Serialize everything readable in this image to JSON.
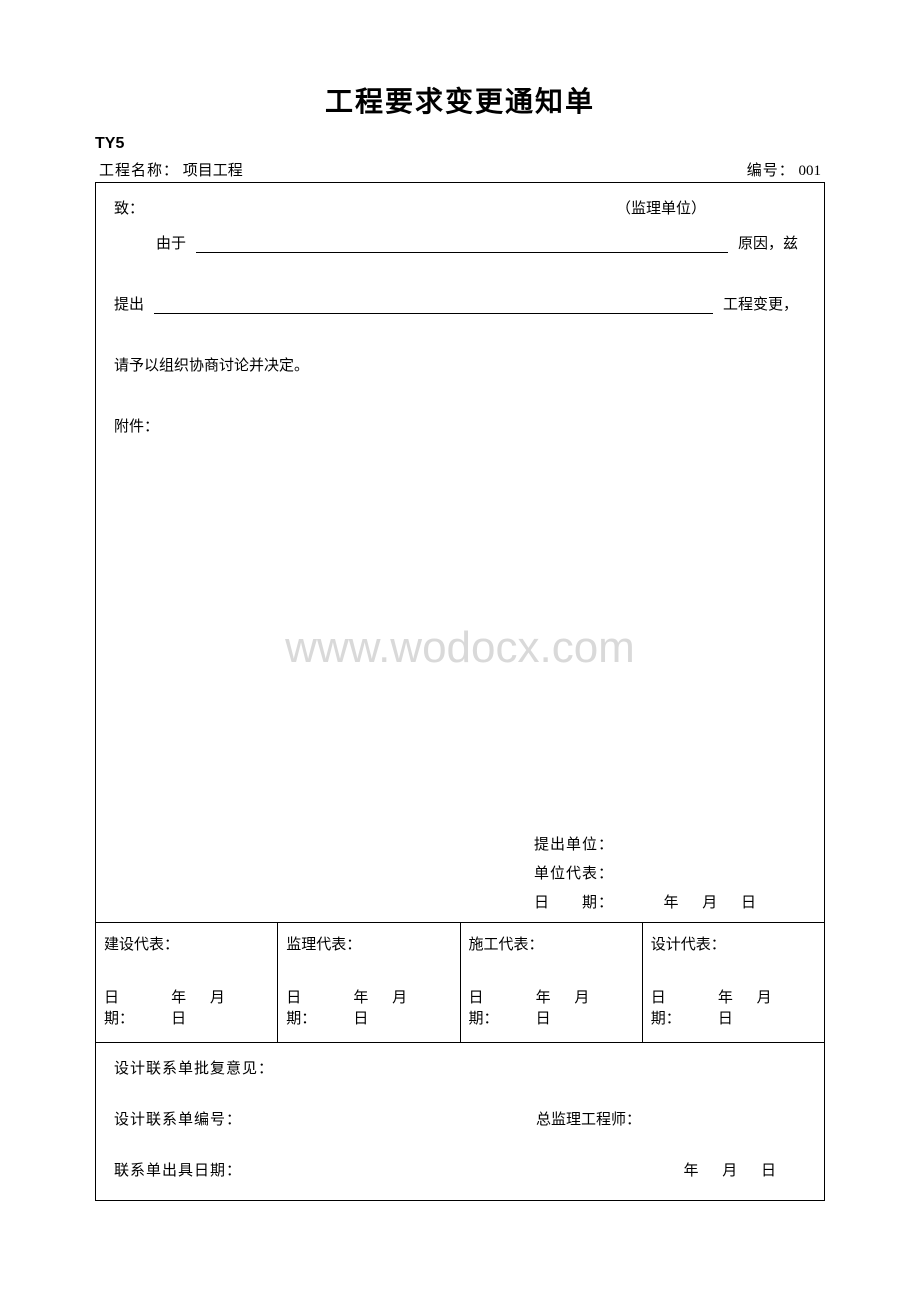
{
  "title": "工程要求变更通知单",
  "form_code": "TY5",
  "header": {
    "project_label": "工程名称：",
    "project_name": "项目工程",
    "number_label": "编号：",
    "number_value": "001"
  },
  "body": {
    "to_label": "致：",
    "supervisor_unit": "（监理单位）",
    "reason_prefix": "由于",
    "reason_suffix": "原因，兹",
    "propose_prefix": "提出",
    "propose_suffix": "工程变更，",
    "request_text": "请予以组织协商讨论并决定。",
    "attachment_label": "附件："
  },
  "watermark": "www.wodocx.com",
  "submit": {
    "unit_label": "提出单位：",
    "rep_label": "单位代表：",
    "date_label": "日　　期：",
    "date_ymd": "年 月 日"
  },
  "signatures": [
    {
      "rep": "建设代表：",
      "date_label": "日期：",
      "ymd": "年 月 日"
    },
    {
      "rep": "监理代表：",
      "date_label": "日期：",
      "ymd": "年 月 日"
    },
    {
      "rep": "施工代表：",
      "date_label": "日期：",
      "ymd": "年 月 日"
    },
    {
      "rep": "设计代表：",
      "date_label": "日期：",
      "ymd": "年 月 日"
    }
  ],
  "bottom": {
    "opinion_label": "设计联系单批复意见：",
    "number_label": "设计联系单编号：",
    "engineer_label": "总监理工程师：",
    "issue_date_label": "联系单出具日期：",
    "issue_date_ymd": "年 月 日"
  },
  "colors": {
    "text": "#000000",
    "border": "#000000",
    "background": "#ffffff",
    "watermark": "#d9d9d9"
  },
  "fonts": {
    "title_size": 28,
    "body_size": 15,
    "watermark_size": 44
  }
}
